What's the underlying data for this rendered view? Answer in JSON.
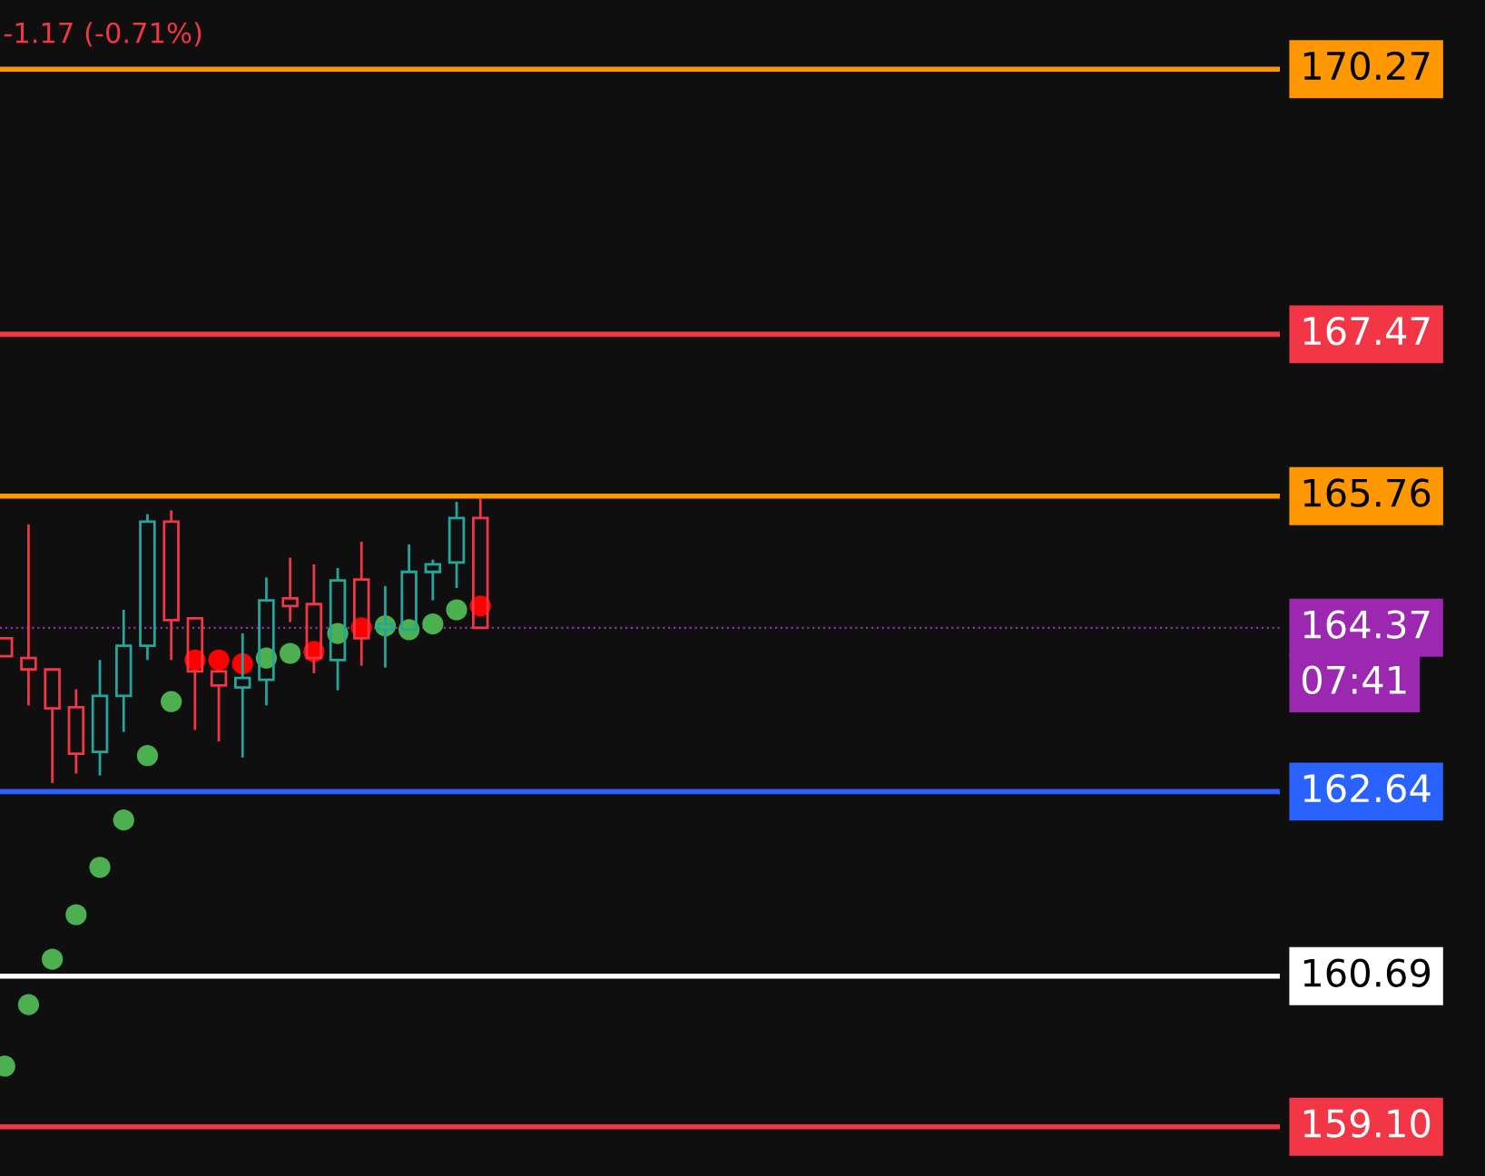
{
  "chart_data": {
    "type": "candlestick",
    "categories": [
      null,
      null,
      null,
      null,
      null,
      null,
      null,
      null,
      null,
      null,
      null,
      null,
      null,
      null,
      null,
      null,
      null,
      null,
      null,
      null,
      null
    ],
    "ohlc": [
      [
        164.26,
        164.26,
        164.07,
        164.07
      ],
      [
        164.05,
        165.46,
        163.55,
        163.93
      ],
      [
        163.93,
        163.93,
        162.73,
        163.52
      ],
      [
        163.53,
        163.72,
        162.83,
        163.04
      ],
      [
        163.06,
        164.03,
        162.81,
        163.65
      ],
      [
        163.65,
        164.56,
        163.27,
        164.18
      ],
      [
        164.18,
        165.57,
        164.03,
        165.49
      ],
      [
        165.49,
        165.61,
        164.03,
        164.45
      ],
      [
        164.47,
        164.47,
        163.29,
        163.91
      ],
      [
        163.91,
        163.91,
        163.17,
        163.76
      ],
      [
        163.74,
        164.31,
        163.0,
        163.84
      ],
      [
        163.82,
        164.9,
        163.55,
        164.66
      ],
      [
        164.68,
        165.11,
        164.43,
        164.6
      ],
      [
        164.62,
        165.04,
        163.89,
        164.05
      ],
      [
        164.03,
        165.0,
        163.71,
        164.87
      ],
      [
        164.88,
        165.28,
        163.97,
        164.26
      ],
      [
        164.35,
        164.81,
        163.95,
        164.41
      ],
      [
        164.35,
        165.25,
        164.35,
        164.96
      ],
      [
        164.96,
        165.09,
        164.66,
        165.04
      ],
      [
        165.06,
        165.7,
        164.79,
        165.53
      ],
      [
        165.53,
        165.74,
        164.37,
        164.37
      ]
    ],
    "colors": [
      "#f23645",
      "#f23645",
      "#f23645",
      "#f23645",
      "#26a69a",
      "#26a69a",
      "#26a69a",
      "#f23645",
      "#f23645",
      "#f23645",
      "#26a69a",
      "#26a69a",
      "#f23645",
      "#f23645",
      "#26a69a",
      "#f23645",
      "#26a69a",
      "#26a69a",
      "#26a69a",
      "#26a69a",
      "#f23645"
    ],
    "series": [
      {
        "type": "scatter",
        "color": "#4caf50",
        "values": [
          159.74,
          160.39,
          160.87,
          161.34,
          161.84,
          162.34,
          163.02,
          163.59,
          null,
          null,
          null,
          164.05,
          164.1,
          null,
          164.31,
          null,
          164.39,
          164.35,
          164.41,
          164.56,
          null
        ]
      },
      {
        "type": "scatter",
        "color": "#ff0000",
        "values": [
          null,
          null,
          null,
          null,
          null,
          null,
          null,
          null,
          164.03,
          164.03,
          163.99,
          null,
          null,
          164.12,
          null,
          164.37,
          null,
          null,
          null,
          null,
          164.6
        ]
      }
    ],
    "ylim": [
      158.58,
      171.0
    ],
    "grid": false,
    "legend": false,
    "marker": "circle",
    "ref_lines": [
      {
        "axis": "y",
        "value": 170.27,
        "label": "170.27",
        "color": "#ff9800",
        "line_style": "solid"
      },
      {
        "axis": "y",
        "value": 167.47,
        "label": "167.47",
        "color": "#f23645",
        "line_style": "solid"
      },
      {
        "axis": "y",
        "value": 165.76,
        "label": "165.76",
        "color": "#ff9800",
        "line_style": "solid"
      },
      {
        "axis": "y",
        "value": 164.37,
        "label": "164.37",
        "color": "#9c27b0",
        "line_style": "dotted"
      },
      {
        "axis": "y",
        "value": 162.64,
        "label": "162.64",
        "color": "#2962ff",
        "line_style": "solid"
      },
      {
        "axis": "y",
        "value": 160.69,
        "label": "160.69",
        "color": "#ffffff",
        "line_style": "solid"
      },
      {
        "axis": "y",
        "value": 159.1,
        "label": "159.10",
        "color": "#f23645",
        "line_style": "solid"
      }
    ],
    "annotations": [
      "-1.17 (-0.71%)",
      "07:41"
    ]
  }
}
